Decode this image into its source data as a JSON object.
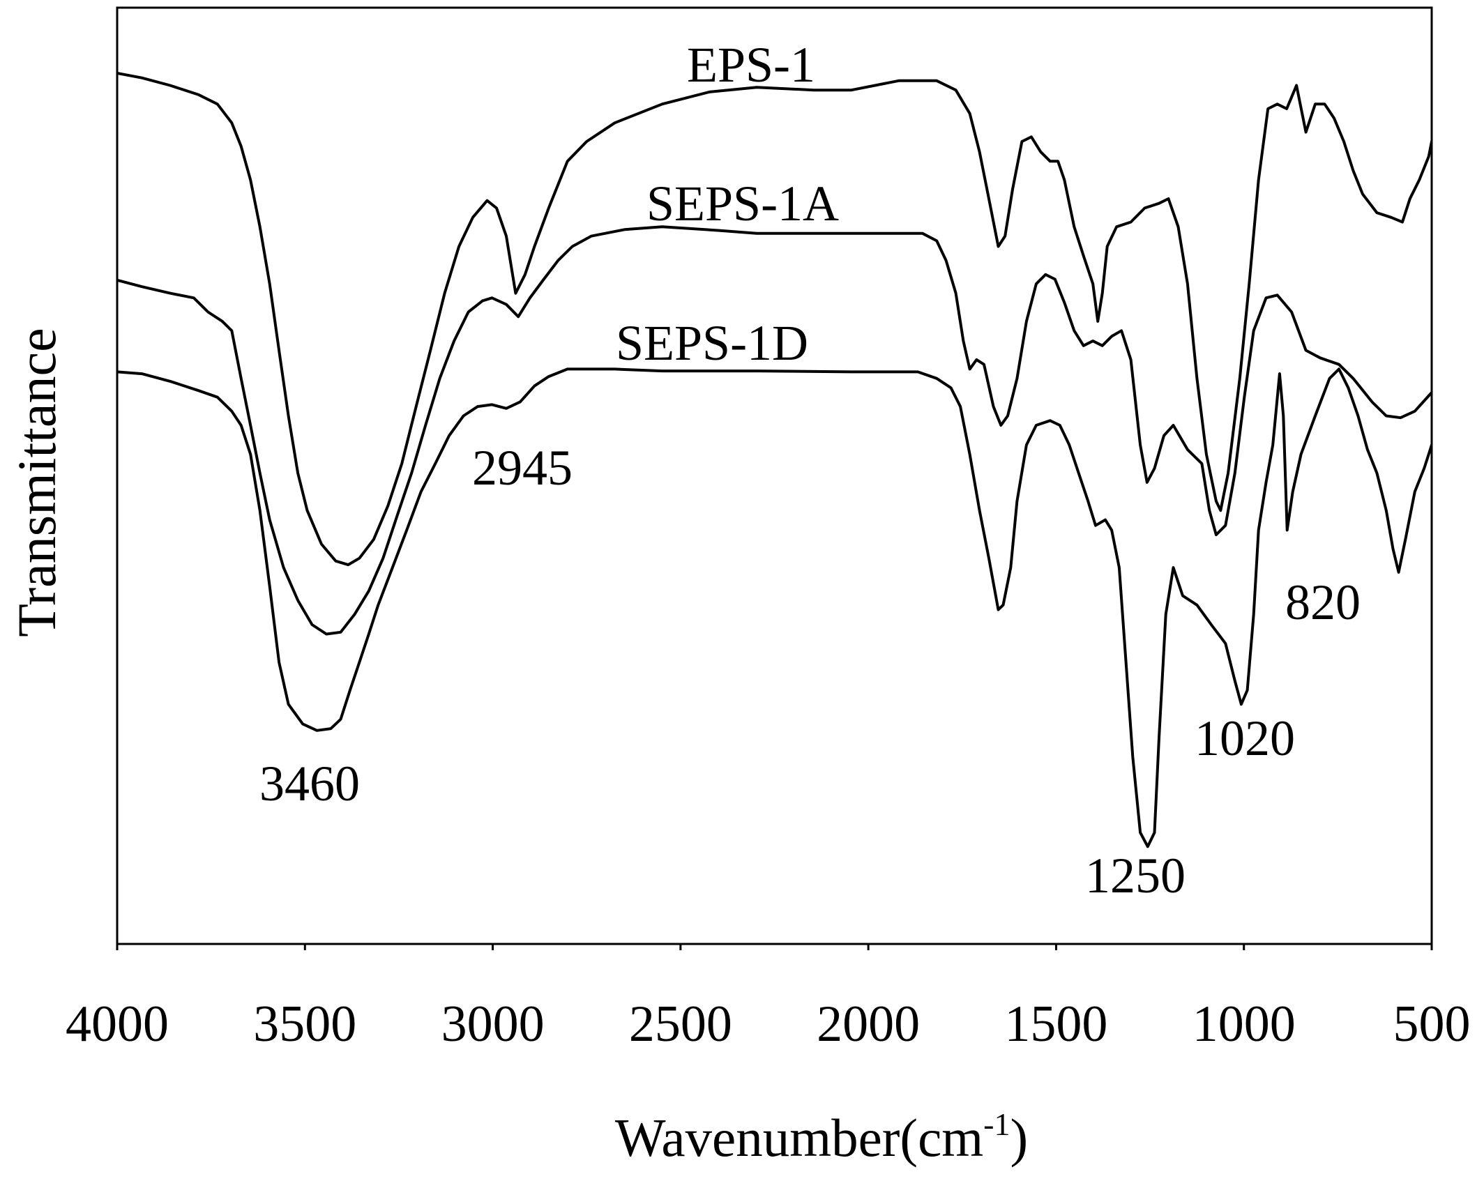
{
  "chart_data": {
    "type": "line",
    "xlabel": "Wavenumber(cm-1)",
    "ylabel": "Transmittance",
    "xlim": [
      4000,
      500
    ],
    "ylim": [
      0,
      100
    ],
    "x_ticks": [
      4000,
      3500,
      3000,
      2500,
      2000,
      1500,
      1000,
      500
    ],
    "grid": false,
    "legend": "none",
    "colors": {
      "line": "#000000",
      "background": "#ffffff"
    },
    "series": [
      {
        "name": "EPS-1",
        "points": [
          [
            4000,
            93.0
          ],
          [
            3934,
            92.5
          ],
          [
            3859,
            91.7
          ],
          [
            3783,
            90.7
          ],
          [
            3733,
            89.7
          ],
          [
            3695,
            87.7
          ],
          [
            3670,
            85.2
          ],
          [
            3645,
            81.6
          ],
          [
            3620,
            76.6
          ],
          [
            3594,
            70.5
          ],
          [
            3569,
            63.4
          ],
          [
            3544,
            56.4
          ],
          [
            3519,
            50.3
          ],
          [
            3494,
            46.3
          ],
          [
            3456,
            42.7
          ],
          [
            3418,
            40.9
          ],
          [
            3385,
            40.5
          ],
          [
            3355,
            41.2
          ],
          [
            3317,
            43.2
          ],
          [
            3279,
            46.8
          ],
          [
            3242,
            51.3
          ],
          [
            3204,
            57.4
          ],
          [
            3166,
            63.4
          ],
          [
            3128,
            69.5
          ],
          [
            3090,
            74.5
          ],
          [
            3053,
            77.6
          ],
          [
            3015,
            79.4
          ],
          [
            2990,
            78.6
          ],
          [
            2964,
            75.6
          ],
          [
            2939,
            69.5
          ],
          [
            2914,
            71.5
          ],
          [
            2889,
            74.5
          ],
          [
            2851,
            78.6
          ],
          [
            2801,
            83.6
          ],
          [
            2750,
            85.7
          ],
          [
            2675,
            87.7
          ],
          [
            2549,
            89.7
          ],
          [
            2423,
            91.0
          ],
          [
            2297,
            91.5
          ],
          [
            2145,
            91.2
          ],
          [
            2045,
            91.2
          ],
          [
            1919,
            92.2
          ],
          [
            1818,
            92.2
          ],
          [
            1767,
            91.2
          ],
          [
            1730,
            88.7
          ],
          [
            1704,
            84.6
          ],
          [
            1679,
            79.6
          ],
          [
            1654,
            74.5
          ],
          [
            1636,
            75.6
          ],
          [
            1616,
            80.6
          ],
          [
            1591,
            85.7
          ],
          [
            1566,
            86.2
          ],
          [
            1541,
            84.6
          ],
          [
            1516,
            83.6
          ],
          [
            1495,
            83.6
          ],
          [
            1478,
            81.6
          ],
          [
            1452,
            76.6
          ],
          [
            1427,
            73.5
          ],
          [
            1402,
            70.5
          ],
          [
            1389,
            66.5
          ],
          [
            1377,
            69.5
          ],
          [
            1364,
            74.5
          ],
          [
            1339,
            76.6
          ],
          [
            1301,
            77.1
          ],
          [
            1264,
            78.6
          ],
          [
            1226,
            79.1
          ],
          [
            1201,
            79.6
          ],
          [
            1175,
            76.6
          ],
          [
            1150,
            70.5
          ],
          [
            1125,
            60.4
          ],
          [
            1100,
            52.3
          ],
          [
            1074,
            47.3
          ],
          [
            1062,
            46.3
          ],
          [
            1042,
            50.3
          ],
          [
            1011,
            60.4
          ],
          [
            986,
            70.5
          ],
          [
            961,
            81.6
          ],
          [
            936,
            89.2
          ],
          [
            911,
            89.7
          ],
          [
            886,
            89.2
          ],
          [
            860,
            91.7
          ],
          [
            835,
            86.7
          ],
          [
            810,
            89.7
          ],
          [
            785,
            89.7
          ],
          [
            760,
            88.2
          ],
          [
            734,
            85.7
          ],
          [
            709,
            82.6
          ],
          [
            684,
            80.1
          ],
          [
            646,
            78.1
          ],
          [
            608,
            77.6
          ],
          [
            578,
            77.1
          ],
          [
            558,
            79.6
          ],
          [
            533,
            81.6
          ],
          [
            508,
            84.1
          ],
          [
            500,
            85.7
          ]
        ]
      },
      {
        "name": "SEPS-1A",
        "points": [
          [
            4000,
            70.9
          ],
          [
            3934,
            70.2
          ],
          [
            3859,
            69.5
          ],
          [
            3796,
            69.0
          ],
          [
            3758,
            67.5
          ],
          [
            3720,
            66.5
          ],
          [
            3695,
            65.5
          ],
          [
            3670,
            60.4
          ],
          [
            3645,
            55.4
          ],
          [
            3620,
            50.3
          ],
          [
            3594,
            45.3
          ],
          [
            3557,
            40.2
          ],
          [
            3519,
            36.7
          ],
          [
            3481,
            34.1
          ],
          [
            3443,
            33.1
          ],
          [
            3405,
            33.3
          ],
          [
            3368,
            35.2
          ],
          [
            3330,
            37.7
          ],
          [
            3292,
            41.2
          ],
          [
            3254,
            45.8
          ],
          [
            3216,
            50.3
          ],
          [
            3179,
            55.4
          ],
          [
            3141,
            60.4
          ],
          [
            3103,
            64.4
          ],
          [
            3065,
            67.5
          ],
          [
            3027,
            68.7
          ],
          [
            3002,
            69.0
          ],
          [
            2964,
            68.3
          ],
          [
            2932,
            67.0
          ],
          [
            2901,
            69.0
          ],
          [
            2864,
            71.0
          ],
          [
            2826,
            73.0
          ],
          [
            2788,
            74.5
          ],
          [
            2738,
            75.6
          ],
          [
            2649,
            76.3
          ],
          [
            2549,
            76.6
          ],
          [
            2397,
            76.2
          ],
          [
            2297,
            75.9
          ],
          [
            2045,
            75.9
          ],
          [
            1856,
            75.9
          ],
          [
            1818,
            75.1
          ],
          [
            1793,
            73.0
          ],
          [
            1767,
            69.5
          ],
          [
            1747,
            64.4
          ],
          [
            1730,
            61.4
          ],
          [
            1712,
            62.4
          ],
          [
            1692,
            61.9
          ],
          [
            1667,
            57.4
          ],
          [
            1647,
            55.4
          ],
          [
            1629,
            56.4
          ],
          [
            1604,
            60.4
          ],
          [
            1579,
            66.5
          ],
          [
            1553,
            70.5
          ],
          [
            1528,
            71.5
          ],
          [
            1503,
            71.0
          ],
          [
            1478,
            68.5
          ],
          [
            1452,
            65.5
          ],
          [
            1427,
            63.9
          ],
          [
            1402,
            64.4
          ],
          [
            1377,
            63.9
          ],
          [
            1352,
            64.9
          ],
          [
            1326,
            65.5
          ],
          [
            1301,
            62.4
          ],
          [
            1276,
            53.3
          ],
          [
            1258,
            49.3
          ],
          [
            1238,
            50.8
          ],
          [
            1213,
            54.3
          ],
          [
            1188,
            55.4
          ],
          [
            1150,
            52.8
          ],
          [
            1112,
            51.3
          ],
          [
            1092,
            46.3
          ],
          [
            1074,
            43.7
          ],
          [
            1049,
            44.7
          ],
          [
            1024,
            50.3
          ],
          [
            999,
            58.4
          ],
          [
            974,
            65.5
          ],
          [
            941,
            69.0
          ],
          [
            911,
            69.3
          ],
          [
            873,
            67.5
          ],
          [
            835,
            63.4
          ],
          [
            797,
            62.6
          ],
          [
            747,
            61.9
          ],
          [
            709,
            60.4
          ],
          [
            659,
            57.9
          ],
          [
            621,
            56.4
          ],
          [
            583,
            56.2
          ],
          [
            545,
            56.9
          ],
          [
            500,
            58.9
          ]
        ]
      },
      {
        "name": "SEPS-1D",
        "points": [
          [
            4000,
            61.1
          ],
          [
            3934,
            60.9
          ],
          [
            3859,
            60.1
          ],
          [
            3783,
            59.1
          ],
          [
            3733,
            58.4
          ],
          [
            3695,
            56.9
          ],
          [
            3670,
            55.4
          ],
          [
            3645,
            52.3
          ],
          [
            3620,
            46.3
          ],
          [
            3594,
            38.2
          ],
          [
            3569,
            30.1
          ],
          [
            3544,
            25.6
          ],
          [
            3506,
            23.5
          ],
          [
            3468,
            22.8
          ],
          [
            3431,
            23.0
          ],
          [
            3405,
            24.0
          ],
          [
            3380,
            27.1
          ],
          [
            3355,
            30.1
          ],
          [
            3330,
            33.1
          ],
          [
            3305,
            36.2
          ],
          [
            3267,
            40.2
          ],
          [
            3229,
            44.2
          ],
          [
            3191,
            48.3
          ],
          [
            3153,
            51.3
          ],
          [
            3116,
            54.3
          ],
          [
            3078,
            56.4
          ],
          [
            3040,
            57.4
          ],
          [
            3002,
            57.6
          ],
          [
            2964,
            57.2
          ],
          [
            2927,
            57.9
          ],
          [
            2889,
            59.6
          ],
          [
            2851,
            60.6
          ],
          [
            2801,
            61.4
          ],
          [
            2675,
            61.4
          ],
          [
            2549,
            61.2
          ],
          [
            2297,
            61.2
          ],
          [
            2045,
            61.1
          ],
          [
            1868,
            61.1
          ],
          [
            1818,
            60.4
          ],
          [
            1780,
            59.4
          ],
          [
            1755,
            57.4
          ],
          [
            1730,
            52.3
          ],
          [
            1704,
            46.3
          ],
          [
            1679,
            41.2
          ],
          [
            1654,
            35.7
          ],
          [
            1641,
            36.2
          ],
          [
            1621,
            40.2
          ],
          [
            1604,
            47.3
          ],
          [
            1579,
            53.3
          ],
          [
            1553,
            55.4
          ],
          [
            1516,
            55.9
          ],
          [
            1490,
            55.4
          ],
          [
            1465,
            53.3
          ],
          [
            1440,
            50.3
          ],
          [
            1415,
            47.3
          ],
          [
            1395,
            44.7
          ],
          [
            1369,
            45.3
          ],
          [
            1352,
            44.2
          ],
          [
            1332,
            40.2
          ],
          [
            1314,
            30.1
          ],
          [
            1296,
            20.0
          ],
          [
            1276,
            11.9
          ],
          [
            1256,
            10.4
          ],
          [
            1238,
            11.9
          ],
          [
            1226,
            22.0
          ],
          [
            1208,
            35.2
          ],
          [
            1188,
            40.2
          ],
          [
            1163,
            37.2
          ],
          [
            1125,
            36.2
          ],
          [
            1087,
            34.1
          ],
          [
            1049,
            32.1
          ],
          [
            1024,
            28.1
          ],
          [
            1007,
            25.6
          ],
          [
            991,
            27.1
          ],
          [
            974,
            35.2
          ],
          [
            961,
            44.2
          ],
          [
            941,
            49.3
          ],
          [
            923,
            53.3
          ],
          [
            905,
            60.9
          ],
          [
            895,
            56.4
          ],
          [
            885,
            44.2
          ],
          [
            870,
            48.3
          ],
          [
            848,
            52.3
          ],
          [
            810,
            56.4
          ],
          [
            772,
            60.4
          ],
          [
            747,
            61.4
          ],
          [
            722,
            59.4
          ],
          [
            696,
            56.4
          ],
          [
            671,
            52.8
          ],
          [
            646,
            50.3
          ],
          [
            621,
            46.3
          ],
          [
            603,
            42.2
          ],
          [
            588,
            39.7
          ],
          [
            570,
            43.2
          ],
          [
            545,
            48.3
          ],
          [
            520,
            50.8
          ],
          [
            500,
            53.3
          ]
        ]
      }
    ],
    "annotations": [
      "3460",
      "2945",
      "1250",
      "1020",
      "820"
    ]
  }
}
